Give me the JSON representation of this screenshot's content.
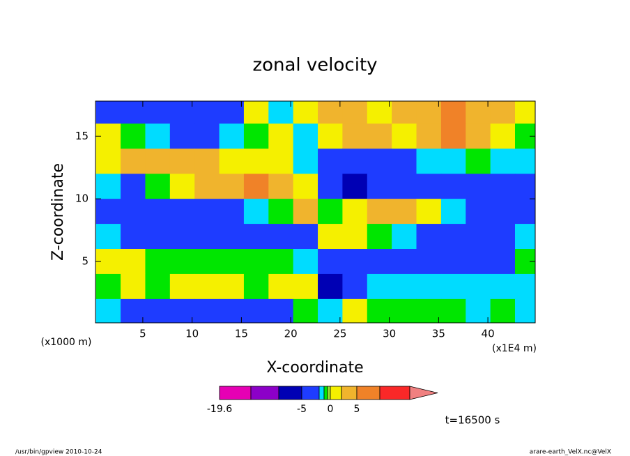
{
  "chart_data": {
    "type": "contour",
    "title": "zonal velocity",
    "x_label": "X-coordinate",
    "y_label": "Z-coordinate",
    "x_unit": "(x1E4 m)",
    "y_unit": "(x1000 m)",
    "time_label": "t=16500 s",
    "footer_left": "/usr/bin/gpview  2010-10-24",
    "footer_right": "arare-earth_VelX.nc@VelX",
    "xlim": [
      0.2,
      44.8
    ],
    "ylim": [
      0.1,
      17.8
    ],
    "xticks": [
      5,
      10,
      15,
      20,
      25,
      30,
      35,
      40
    ],
    "yticks": [
      5,
      10,
      15
    ],
    "x": [
      1.5,
      4,
      6.5,
      9,
      11.5,
      14,
      16.5,
      19,
      21.5,
      24,
      26.5,
      29,
      31.5,
      34,
      36.5,
      39,
      41.5,
      44
    ],
    "y": [
      17,
      15,
      13,
      11,
      9,
      7,
      5,
      3,
      1
    ],
    "z": [
      [
        -3,
        -3,
        -3,
        -3,
        -3,
        -3,
        1,
        -1.5,
        1,
        3.5,
        3.5,
        1,
        3.5,
        3.5,
        7,
        3.5,
        3.5,
        1
      ],
      [
        1,
        -0.7,
        -1.5,
        -3,
        -3,
        -1.5,
        -0.7,
        1,
        -1.5,
        1,
        3.5,
        3.5,
        1,
        3.5,
        7,
        3.5,
        1,
        -0.7
      ],
      [
        1,
        3.5,
        3.5,
        3.5,
        3.5,
        1,
        1,
        1,
        -1.5,
        -3,
        -3,
        -3,
        -3,
        -1.5,
        -1.5,
        -0.7,
        -1.5,
        -1.5
      ],
      [
        -1.5,
        -3,
        -0.7,
        1,
        3.5,
        3.5,
        7,
        3.5,
        1,
        -3,
        -6,
        -3,
        -3,
        -3,
        -3,
        -3,
        -3,
        -3
      ],
      [
        -3,
        -3,
        -3,
        -3,
        -3,
        -3,
        -1.5,
        -0.7,
        3.5,
        -0.7,
        1,
        3.5,
        3.5,
        1,
        -1.5,
        -3,
        -3,
        -3
      ],
      [
        -1.5,
        -3,
        -3,
        -3,
        -3,
        -3,
        -3,
        -3,
        -3,
        1,
        1,
        -0.7,
        -1.5,
        -3,
        -3,
        -3,
        -3,
        -1.5
      ],
      [
        1,
        1,
        -0.7,
        -0.7,
        -0.7,
        -0.7,
        -0.7,
        -0.7,
        -1.5,
        -3,
        -3,
        -3,
        -3,
        -3,
        -3,
        -3,
        -3,
        -0.7
      ],
      [
        -0.7,
        1,
        -0.7,
        1,
        1,
        1,
        -0.7,
        1,
        1,
        -6,
        -3,
        -1.5,
        -1.5,
        -1.5,
        -1.5,
        -1.5,
        -1.5,
        -1.5
      ],
      [
        -1.5,
        -3,
        -3,
        -3,
        -3,
        -3,
        -3,
        -3,
        -0.7,
        -1.5,
        1,
        -0.7,
        -0.7,
        -0.7,
        -0.7,
        -1.5,
        -0.7,
        -1.5
      ]
    ],
    "colorbar": {
      "levels": [
        -19.6,
        -15,
        -10,
        -5,
        -2,
        -1,
        -0.5,
        0,
        2,
        5,
        10,
        15
      ],
      "colors": [
        "#e600b4",
        "#8c00c8",
        "#0000b4",
        "#1e3cff",
        "#00dcff",
        "#00e600",
        "#a0e632",
        "#f5f000",
        "#f0b42d",
        "#f08228",
        "#fa2828"
      ],
      "over_color": "#f08080",
      "ticks": [
        -19.6,
        -5,
        0,
        5
      ]
    }
  }
}
